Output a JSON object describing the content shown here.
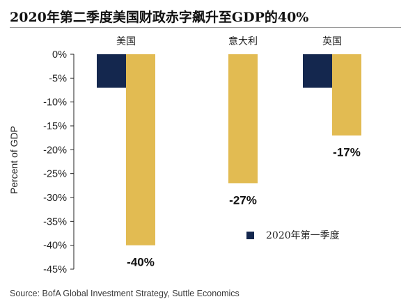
{
  "title": "2020年第二季度美国财政赤字飙升至GDP的40%",
  "source": "Source: BofA Global Investment Strategy, Suttle Economics",
  "chart_data": {
    "type": "bar",
    "title": "2020年第二季度美国财政赤字飙升至GDP的40%",
    "ylabel": "Percent of GDP",
    "xlabel": "",
    "categories": [
      "美国",
      "意大利",
      "英国"
    ],
    "series": [
      {
        "name": "2020年第一季度",
        "values": [
          -7,
          null,
          -7
        ],
        "color": "#14274e"
      },
      {
        "values": [
          -40,
          -27,
          -17
        ],
        "color": "#e2bb52"
      }
    ],
    "data_labels": [
      "-40%",
      "-27%",
      "-17%"
    ],
    "ylim": [
      -45,
      0
    ],
    "yticks": [
      "0%",
      "-5%",
      "-10%",
      "-15%",
      "-20%",
      "-25%",
      "-30%",
      "-35%",
      "-40%",
      "-45%"
    ],
    "category_position": "top",
    "legend_position": "bottom-right",
    "grid": false
  }
}
